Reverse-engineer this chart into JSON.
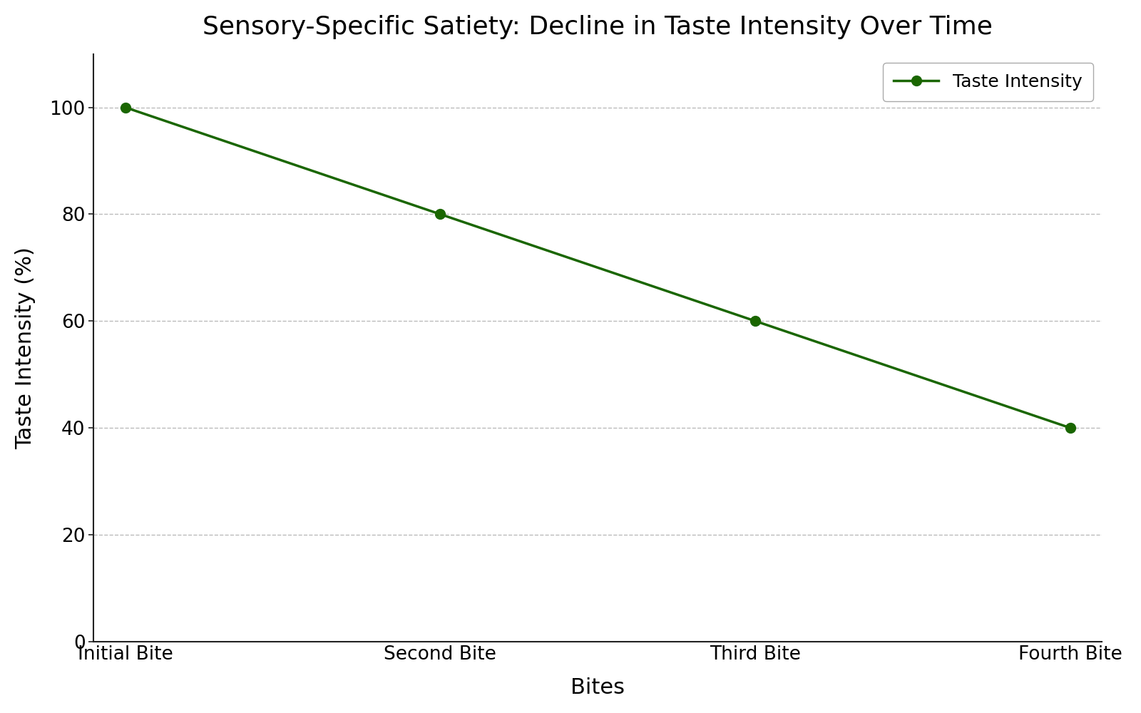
{
  "title": "Sensory-Specific Satiety: Decline in Taste Intensity Over Time",
  "xlabel": "Bites",
  "ylabel": "Taste Intensity (%)",
  "legend_label": "Taste Intensity",
  "x_labels": [
    "Initial Bite",
    "Second Bite",
    "Third Bite",
    "Fourth Bite"
  ],
  "y_values": [
    100,
    80,
    60,
    40
  ],
  "line_color": "#1a6600",
  "marker": "o",
  "marker_size": 10,
  "line_width": 2.5,
  "ylim": [
    0,
    110
  ],
  "yticks": [
    0,
    20,
    40,
    60,
    80,
    100
  ],
  "background_color": "#ffffff",
  "grid_color": "#bbbbbb",
  "grid_linestyle": "--",
  "title_fontsize": 26,
  "axis_label_fontsize": 22,
  "tick_fontsize": 19,
  "legend_fontsize": 18
}
